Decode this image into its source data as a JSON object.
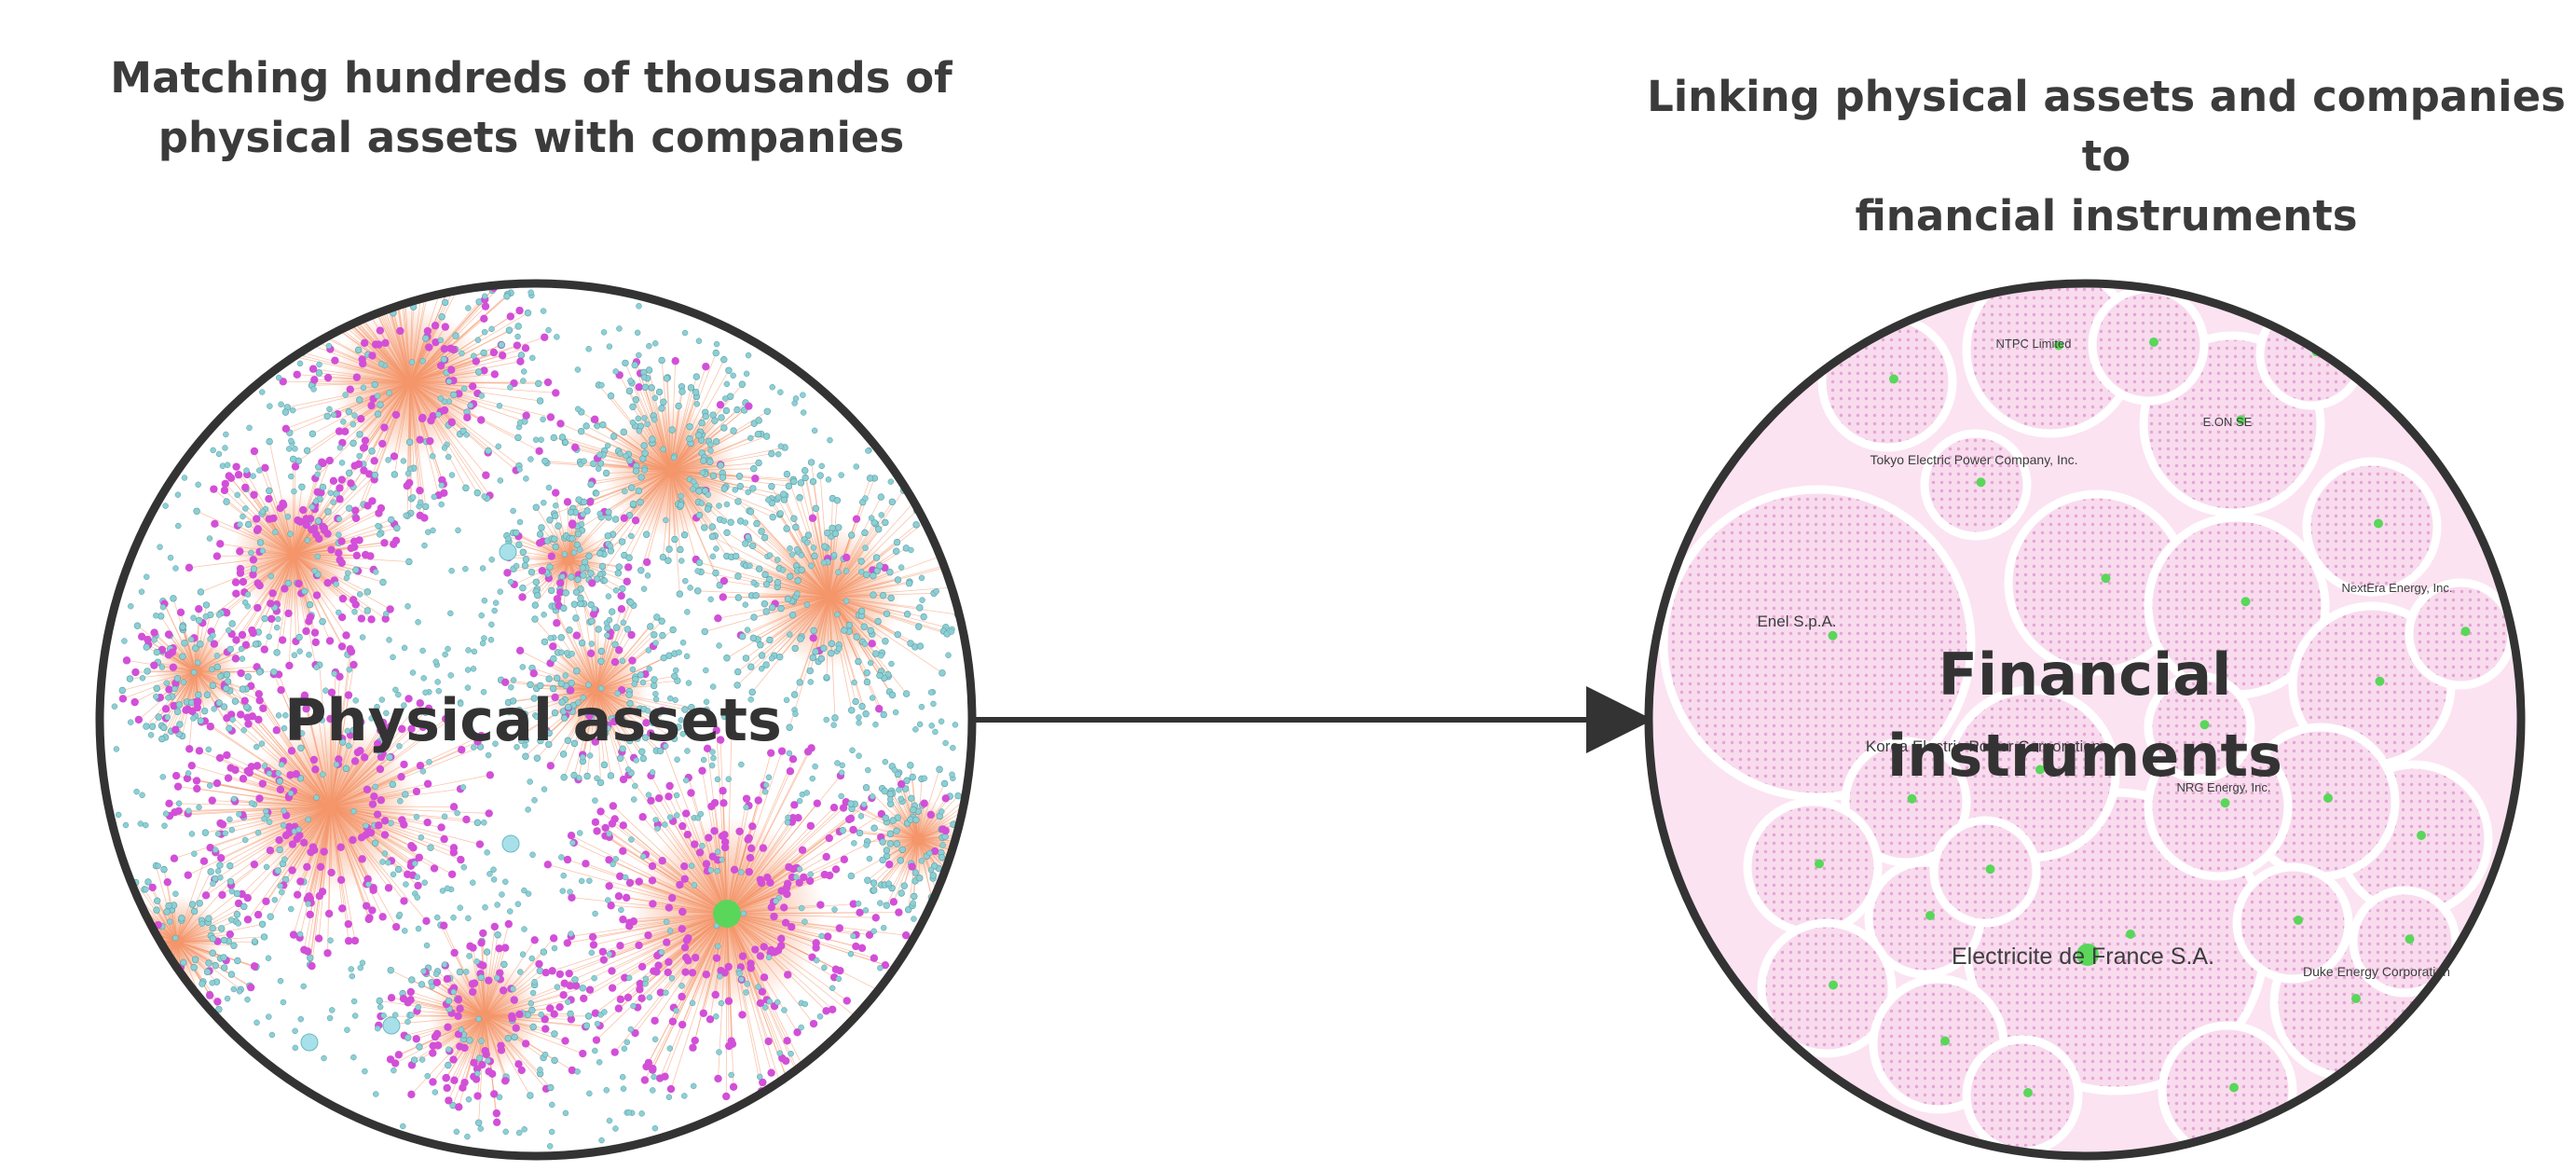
{
  "left_panel": {
    "heading_line1": "Matching hundreds of thousands of",
    "heading_line2": "physical assets with companies",
    "circle_label": "Physical assets"
  },
  "right_panel": {
    "heading_line1": "Linking physical assets and companies to",
    "heading_line2": "financial instruments",
    "circle_label_line1": "Financial",
    "circle_label_line2": "instruments",
    "company_labels": [
      "NTPC Limited",
      "E.ON SE",
      "Tokyo Electric Power Company, Inc.",
      "NextEra Energy, Inc.",
      "Enel S.p.A.",
      "Korea Electric Power Corporation",
      "NRG Energy, Inc.",
      "Electricite de France S.A.",
      "Duke Energy Corporation"
    ]
  },
  "colors": {
    "heading_text": "#3b3b3b",
    "circle_border": "#333333",
    "hub_orange": "#f4956a",
    "asset_teal": "#8ccfd4",
    "company_magenta": "#d24fd8",
    "highlight_green": "#5ad65a",
    "cluster_pink": "#f3c9e3",
    "arrow": "#333333"
  }
}
